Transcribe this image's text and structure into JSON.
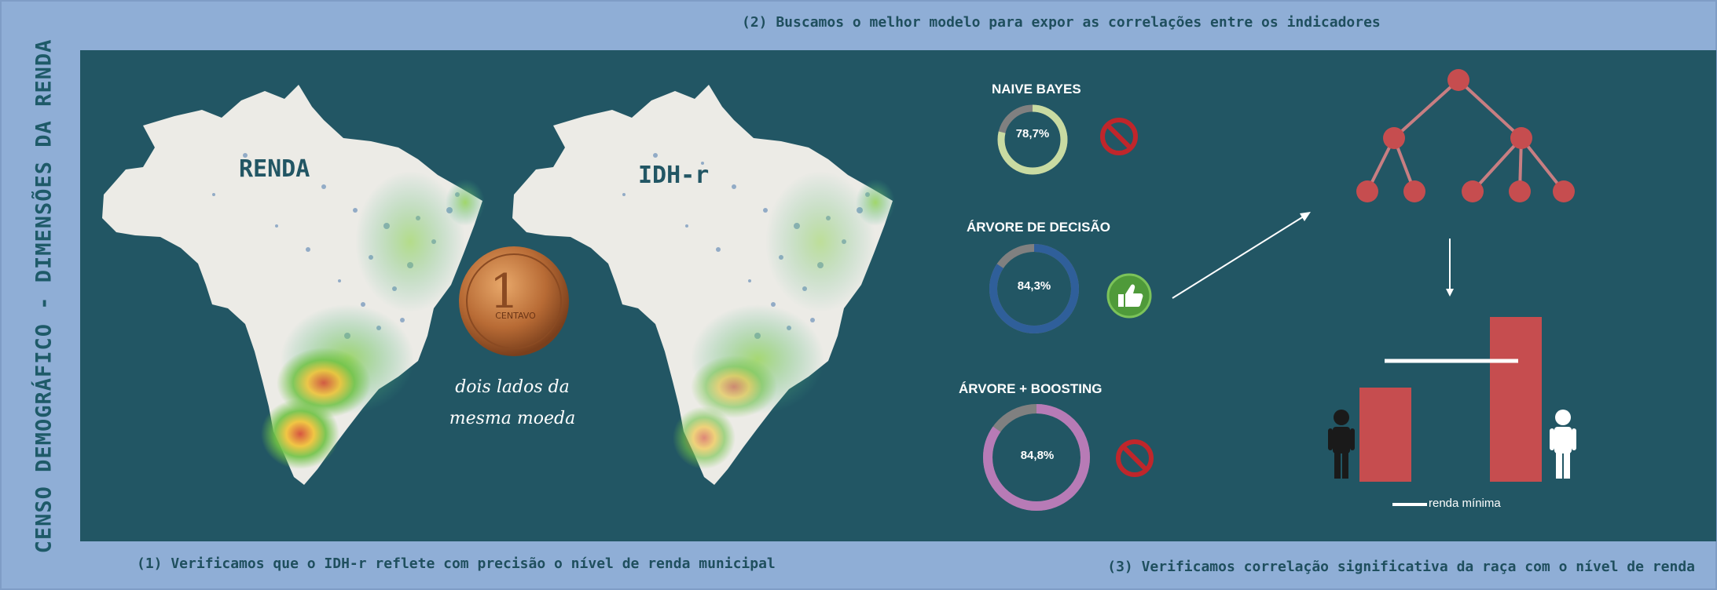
{
  "side_title": "CENSO DEMOGRÁFICO - DIMENSÕES DA RENDA",
  "captions": {
    "step1": "(1) Verificamos que o IDH-r reflete com precisão o nível de renda municipal",
    "step2": "(2) Buscamos o melhor modelo para expor as correlações entre os indicadores",
    "step3": "(3) Verificamos correlação significativa da raça com o nível de renda"
  },
  "maps": {
    "left_label": "RENDA",
    "right_label": "IDH-r"
  },
  "coin_caption": {
    "line1": "dois lados da",
    "line2": "mesma moeda"
  },
  "coin_label": "CENTAVO",
  "models": [
    {
      "name": "NAIVE BAYES",
      "accuracy_label": "78,7%",
      "accuracy": 78.7,
      "ring_color": "#c9dba2",
      "verdict": "rejected",
      "verdict_icon": "prohibited-icon"
    },
    {
      "name": "ÁRVORE  DE DECISÃO",
      "accuracy_label": "84,3%",
      "accuracy": 84.3,
      "ring_color": "#2f5f9a",
      "verdict": "approved",
      "verdict_icon": "thumbs-up-icon"
    },
    {
      "name": "ÁRVORE + BOOSTING",
      "accuracy_label": "84,8%",
      "accuracy": 84.8,
      "ring_color": "#b77bb6",
      "verdict": "rejected",
      "verdict_icon": "prohibited-icon"
    }
  ],
  "race_chart": {
    "legend_label": "renda mínima",
    "bar_color": "#c64d4f",
    "line_color": "#ffffff"
  }
}
